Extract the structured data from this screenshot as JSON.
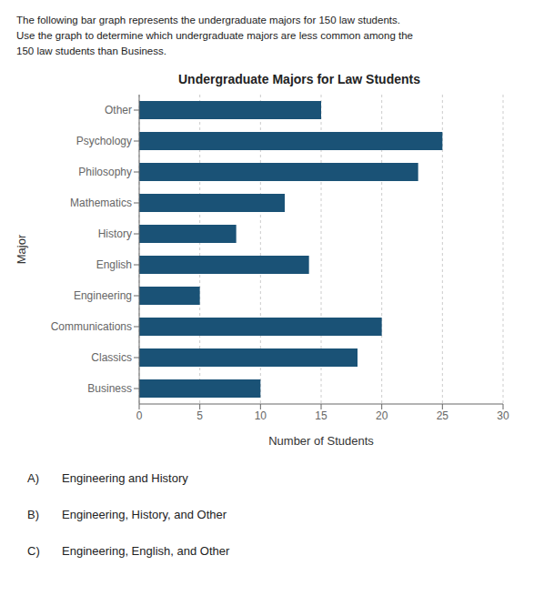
{
  "chart_data": {
    "type": "bar",
    "orientation": "horizontal",
    "title": "Undergraduate Majors for Law Students",
    "subtitle": [
      "The following bar graph represents the undergraduate majors for 150 law students.",
      "Use the graph to determine which undergraduate majors are less common among the",
      "150 law students than Business."
    ],
    "xlabel": "Number of Students",
    "ylabel": "Major",
    "categories": [
      "Business",
      "Classics",
      "Communications",
      "Engineering",
      "English",
      "History",
      "Mathematics",
      "Philosophy",
      "Psychology",
      "Other"
    ],
    "values": [
      10,
      18,
      20,
      5,
      14,
      8,
      12,
      23,
      25,
      15
    ],
    "color": "#1a5276",
    "xlim": [
      0,
      30
    ],
    "xticks": [
      0,
      5,
      10,
      15,
      20,
      25,
      30
    ],
    "grid": true,
    "annotations": [
      {
        "label": "A)",
        "text": "Engineering and History"
      },
      {
        "label": "B)",
        "text": "Engineering, History, and Other"
      },
      {
        "label": "C)",
        "text": "Engineering, English, and Other"
      }
    ]
  }
}
